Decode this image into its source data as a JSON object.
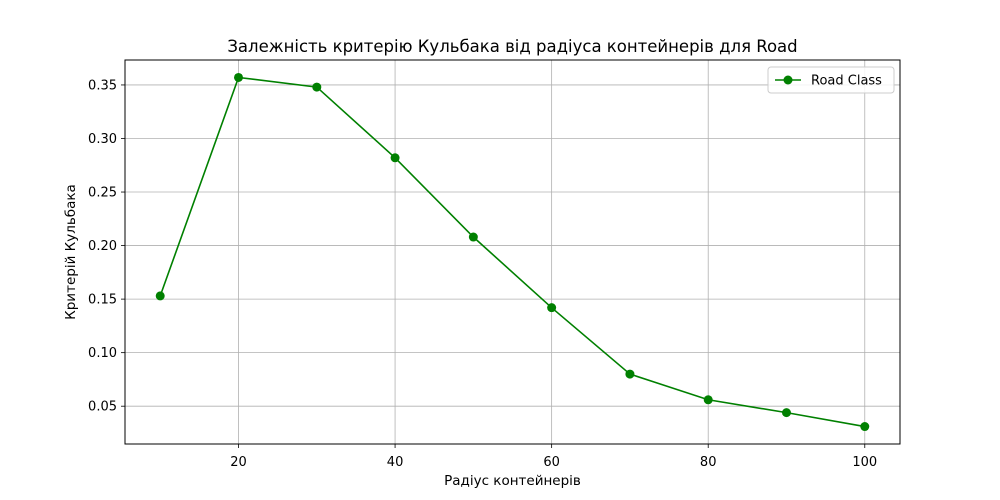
{
  "chart_data": {
    "type": "line",
    "title": "Залежність критерію Кульбака від радіуса контейнерів для Road",
    "xlabel": "Радіус контейнерів",
    "ylabel": "Критерій Кульбака",
    "x": [
      10,
      20,
      30,
      40,
      50,
      60,
      70,
      80,
      90,
      100
    ],
    "series": [
      {
        "name": "Road Class",
        "color": "#008000",
        "marker": "circle",
        "values": [
          0.153,
          0.357,
          0.348,
          0.282,
          0.208,
          0.142,
          0.08,
          0.056,
          0.044,
          0.031
        ]
      }
    ],
    "xlim": [
      5.5,
      104.5
    ],
    "ylim": [
      0.0147,
      0.3733
    ],
    "xticks": [
      20,
      40,
      60,
      80,
      100
    ],
    "xtick_labels": [
      "20",
      "40",
      "60",
      "80",
      "100"
    ],
    "yticks": [
      0.05,
      0.1,
      0.15,
      0.2,
      0.25,
      0.3,
      0.35
    ],
    "ytick_labels": [
      "0.05",
      "0.10",
      "0.15",
      "0.20",
      "0.25",
      "0.30",
      "0.35"
    ],
    "grid": true,
    "legend_position": "top-right"
  }
}
